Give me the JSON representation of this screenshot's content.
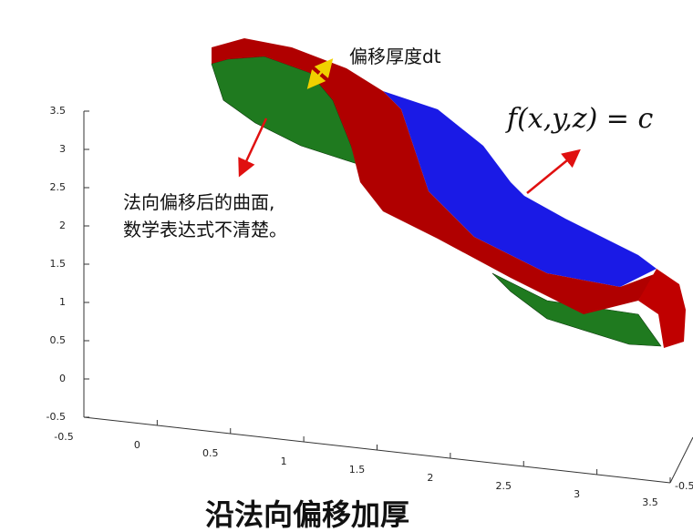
{
  "annotations": {
    "thickness": "偏移厚度dt",
    "formula": "f(x,y,z) = c",
    "surface_note": [
      "法向偏移后的曲面,",
      "数学表达式不清楚。"
    ]
  },
  "caption": "沿法向偏移加厚",
  "axes": {
    "z_ticks": [
      3.5,
      3,
      2.5,
      2,
      1.5,
      1,
      0.5,
      0,
      -0.5
    ],
    "x_ticks": [
      -0.5,
      0,
      0.5,
      1,
      1.5,
      2,
      2.5,
      3,
      3.5
    ],
    "y_ticks": [
      -0.5
    ]
  }
}
